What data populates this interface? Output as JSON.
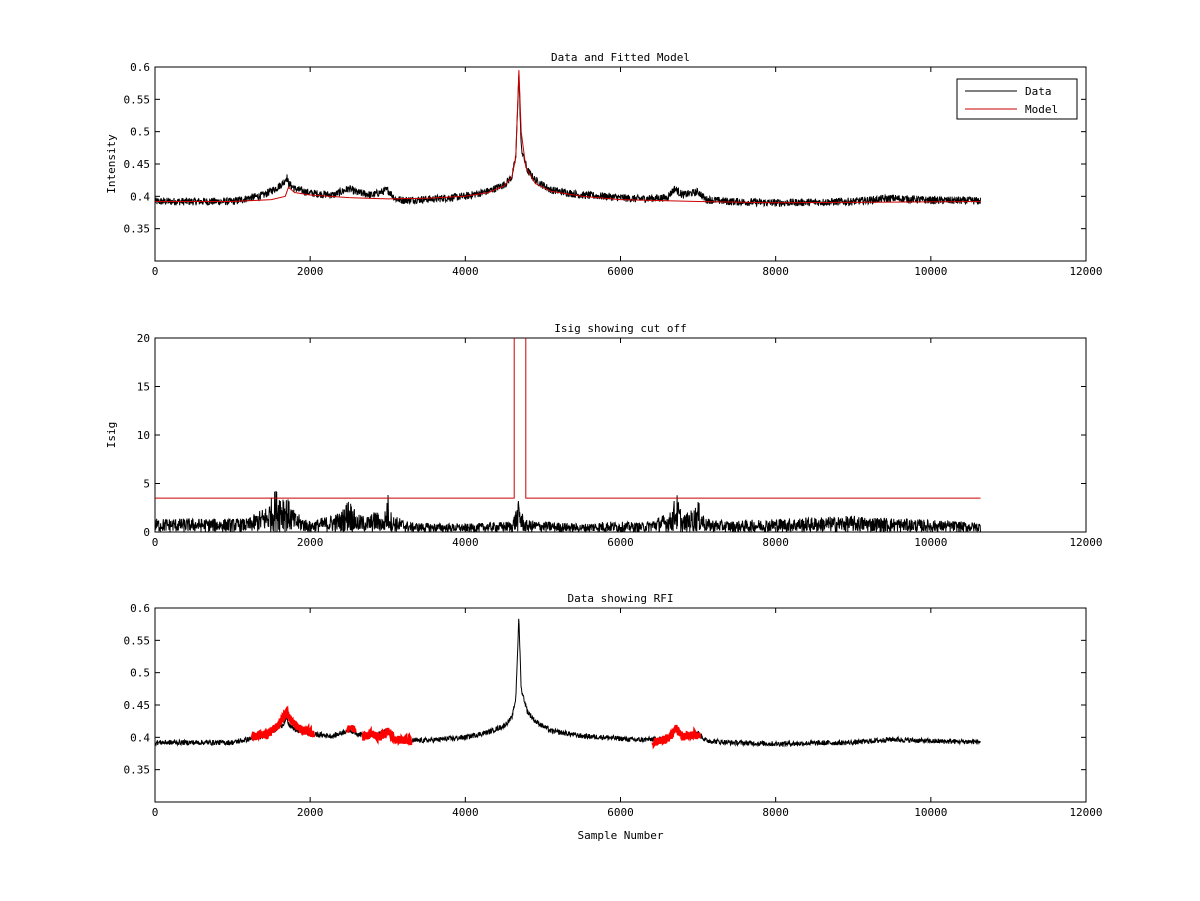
{
  "chart_data": [
    {
      "type": "line",
      "title": "Data and Fitted Model",
      "xlabel": "",
      "ylabel": "Intensity",
      "xlim": [
        0,
        12000
      ],
      "ylim": [
        0.3,
        0.6
      ],
      "x_ticks": [
        0,
        2000,
        4000,
        6000,
        8000,
        10000,
        12000
      ],
      "y_ticks": [
        0.35,
        0.4,
        0.45,
        0.5,
        0.55,
        0.6
      ],
      "legend": {
        "placement": "top-right",
        "entries": [
          "Data",
          "Model"
        ]
      },
      "series": [
        {
          "name": "Data",
          "color": "#000000",
          "kind": "noisy",
          "noise": 0.006,
          "x": [
            0,
            1000,
            1400,
            1550,
            1650,
            1700,
            1720,
            1800,
            2000,
            2300,
            2500,
            2600,
            2800,
            2950,
            3000,
            3100,
            3200,
            3600,
            4000,
            4300,
            4500,
            4600,
            4650,
            4690,
            4720,
            4800,
            4900,
            5100,
            5500,
            5800,
            6200,
            6600,
            6700,
            6800,
            7000,
            7100,
            7400,
            8000,
            9000,
            9500,
            10000,
            10640
          ],
          "y": [
            0.392,
            0.392,
            0.402,
            0.412,
            0.42,
            0.43,
            0.42,
            0.412,
            0.405,
            0.402,
            0.412,
            0.406,
            0.402,
            0.408,
            0.41,
            0.396,
            0.394,
            0.396,
            0.4,
            0.408,
            0.418,
            0.43,
            0.46,
            0.59,
            0.475,
            0.44,
            0.425,
            0.41,
            0.402,
            0.4,
            0.396,
            0.398,
            0.412,
            0.402,
            0.407,
            0.395,
            0.392,
            0.39,
            0.392,
            0.397,
            0.394,
            0.393
          ]
        },
        {
          "name": "Model",
          "color": "#cc0000",
          "kind": "line",
          "x": [
            0,
            1000,
            1500,
            1680,
            1720,
            1800,
            2000,
            2500,
            3000,
            3500,
            4000,
            4300,
            4500,
            4600,
            4650,
            4690,
            4720,
            4780,
            4900,
            5100,
            5500,
            6000,
            7000,
            8000,
            10640
          ],
          "y": [
            0.392,
            0.392,
            0.395,
            0.4,
            0.414,
            0.406,
            0.402,
            0.398,
            0.396,
            0.397,
            0.4,
            0.406,
            0.416,
            0.43,
            0.46,
            0.595,
            0.5,
            0.445,
            0.42,
            0.408,
            0.4,
            0.395,
            0.392,
            0.39,
            0.392
          ]
        }
      ]
    },
    {
      "type": "line",
      "title": "Isig showing cut off",
      "xlabel": "",
      "ylabel": "Isig",
      "xlim": [
        0,
        12000
      ],
      "ylim": [
        0,
        20
      ],
      "x_ticks": [
        0,
        2000,
        4000,
        6000,
        8000,
        10000,
        12000
      ],
      "y_ticks": [
        0,
        5,
        10,
        15,
        20
      ],
      "series": [
        {
          "color": "#000000",
          "kind": "spiky",
          "x": [
            0,
            1200,
            1450,
            1550,
            1650,
            1800,
            2000,
            2400,
            2500,
            2600,
            2750,
            2850,
            2950,
            3000,
            3050,
            3300,
            4000,
            4600,
            4690,
            4760,
            5500,
            5800,
            6300,
            6650,
            6720,
            6800,
            6950,
            7000,
            7100,
            7400,
            8000,
            9000,
            10000,
            10640
          ],
          "y": [
            1.0,
            1.0,
            2.0,
            3.2,
            3.2,
            1.5,
            0.8,
            1.5,
            2.6,
            1.3,
            1.2,
            1.6,
            1.0,
            3.0,
            1.3,
            0.7,
            0.6,
            0.8,
            2.4,
            0.9,
            0.6,
            0.8,
            0.7,
            1.5,
            3.0,
            1.2,
            1.8,
            2.3,
            1.0,
            0.8,
            1.0,
            1.2,
            0.9,
            0.7
          ]
        },
        {
          "color": "#cc0000",
          "kind": "line",
          "x": [
            0,
            4630,
            4630,
            4780,
            4780,
            10640
          ],
          "y": [
            3.5,
            3.5,
            21,
            21,
            3.5,
            3.5
          ]
        }
      ]
    },
    {
      "type": "line",
      "title": "Data showing RFI",
      "xlabel": "Sample Number",
      "ylabel": "",
      "xlim": [
        0,
        12000
      ],
      "ylim": [
        0.3,
        0.6
      ],
      "x_ticks": [
        0,
        2000,
        4000,
        6000,
        8000,
        10000,
        12000
      ],
      "y_ticks": [
        0.35,
        0.4,
        0.45,
        0.5,
        0.55,
        0.6
      ],
      "series": [
        {
          "color": "#000000",
          "kind": "noisy",
          "noise": 0.004,
          "x": [
            0,
            1000,
            1400,
            1550,
            1650,
            1700,
            1720,
            1800,
            2000,
            2300,
            2500,
            2600,
            2800,
            2950,
            3000,
            3100,
            3200,
            3600,
            4000,
            4300,
            4500,
            4600,
            4650,
            4690,
            4720,
            4800,
            4900,
            5100,
            5500,
            5800,
            6200,
            6600,
            6700,
            6800,
            7000,
            7100,
            7400,
            8000,
            9000,
            9500,
            10000,
            10640
          ],
          "y": [
            0.392,
            0.392,
            0.402,
            0.412,
            0.42,
            0.43,
            0.42,
            0.412,
            0.405,
            0.402,
            0.412,
            0.406,
            0.402,
            0.408,
            0.41,
            0.396,
            0.394,
            0.396,
            0.4,
            0.408,
            0.418,
            0.43,
            0.46,
            0.585,
            0.475,
            0.44,
            0.425,
            0.41,
            0.402,
            0.4,
            0.396,
            0.398,
            0.412,
            0.402,
            0.407,
            0.395,
            0.392,
            0.39,
            0.392,
            0.397,
            0.394,
            0.393
          ]
        },
        {
          "color": "#ff0000",
          "kind": "band",
          "noise": 0.006,
          "x": [
            1250,
            1450,
            1600,
            1700,
            1750,
            1850,
            2050
          ],
          "y": [
            0.4,
            0.405,
            0.42,
            0.44,
            0.425,
            0.414,
            0.405
          ]
        },
        {
          "color": "#ff0000",
          "kind": "band",
          "noise": 0.005,
          "x": [
            2480,
            2520,
            2580
          ],
          "y": [
            0.41,
            0.417,
            0.41
          ]
        },
        {
          "color": "#ff0000",
          "kind": "band",
          "noise": 0.006,
          "x": [
            2680,
            2800,
            2900,
            3000,
            3100,
            3300
          ],
          "y": [
            0.4,
            0.405,
            0.4,
            0.41,
            0.397,
            0.395
          ]
        },
        {
          "color": "#ff0000",
          "kind": "band",
          "noise": 0.006,
          "x": [
            6420,
            6550,
            6650,
            6720,
            6800,
            6950,
            7020
          ],
          "y": [
            0.392,
            0.396,
            0.402,
            0.414,
            0.4,
            0.404,
            0.402
          ]
        }
      ]
    }
  ]
}
